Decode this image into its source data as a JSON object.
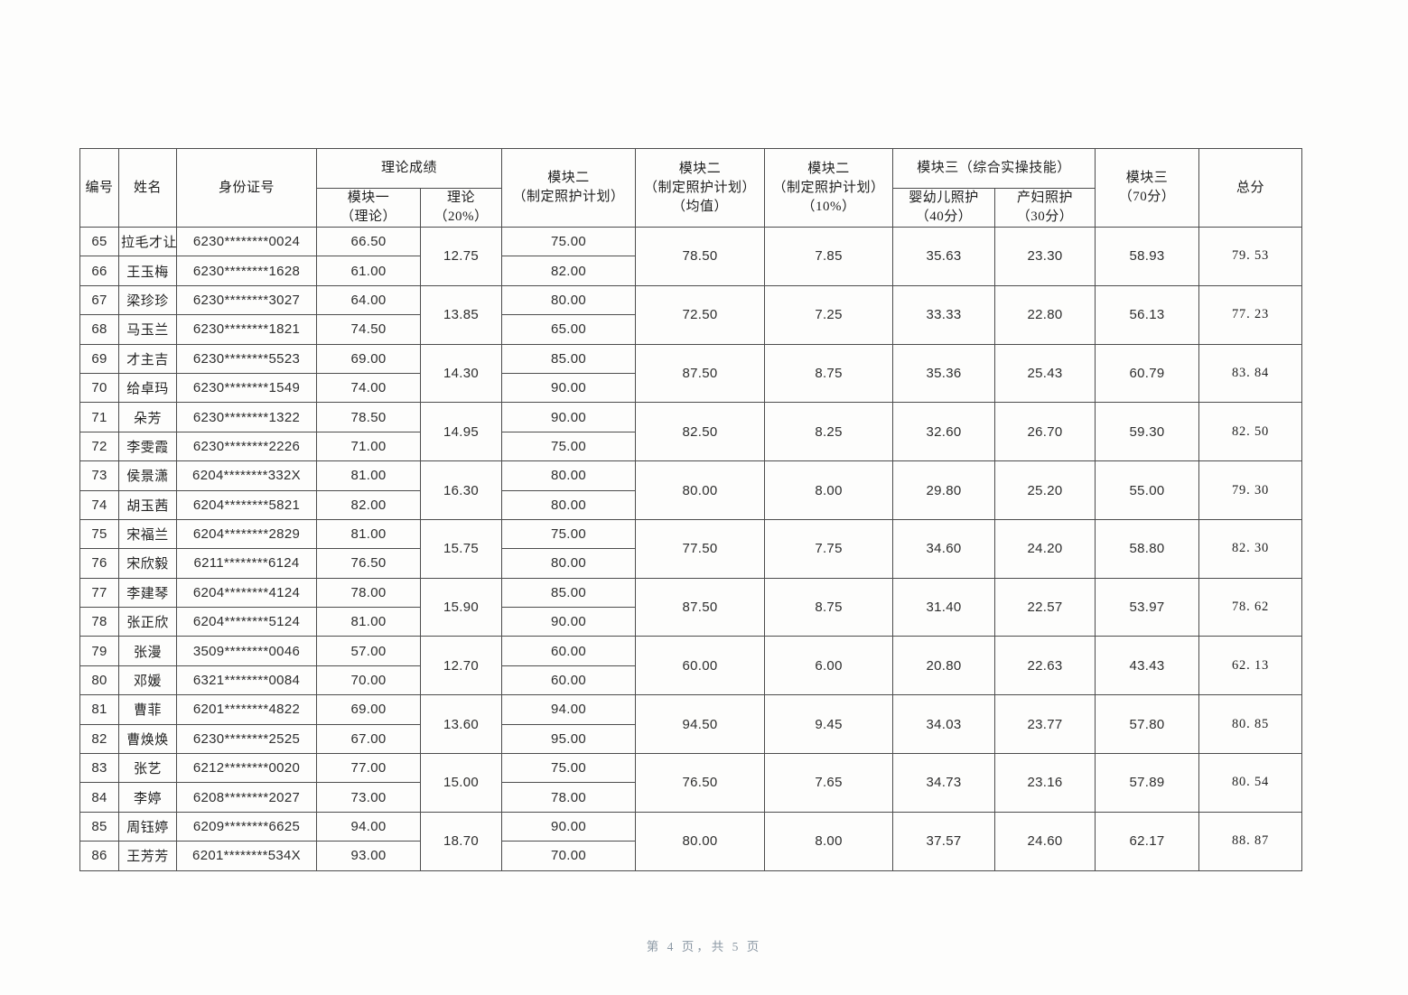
{
  "page": {
    "footer": "第 4 页，共 5 页"
  },
  "table": {
    "headers": {
      "no": "编号",
      "name": "姓名",
      "id_number": "身份证号",
      "theory_group": "理论成绩",
      "module1_theory": "模块一\n（理论）",
      "theory_20": "理论\n（20%）",
      "module2": "模块二\n（制定照护计划）",
      "module2_avg": "模块二\n（制定照护计划）\n（均值）",
      "module2_pct": "模块二\n（制定照护计划）\n（10%）",
      "module3_group": "模块三（综合实操技能）",
      "infant_care": "婴幼儿照护\n（40分）",
      "maternity_care": "产妇照护\n（30分）",
      "module3_70": "模块三\n（70分）",
      "total": "总分"
    },
    "rows": [
      {
        "no": "65",
        "name": "拉毛才让",
        "id": "6230********0024",
        "m1": "66.50",
        "m2": "75.00"
      },
      {
        "no": "66",
        "name": "王玉梅",
        "id": "6230********1628",
        "m1": "61.00",
        "m2": "82.00"
      },
      {
        "no": "67",
        "name": "梁珍珍",
        "id": "6230********3027",
        "m1": "64.00",
        "m2": "80.00"
      },
      {
        "no": "68",
        "name": "马玉兰",
        "id": "6230********1821",
        "m1": "74.50",
        "m2": "65.00"
      },
      {
        "no": "69",
        "name": "才主吉",
        "id": "6230********5523",
        "m1": "69.00",
        "m2": "85.00"
      },
      {
        "no": "70",
        "name": "给卓玛",
        "id": "6230********1549",
        "m1": "74.00",
        "m2": "90.00"
      },
      {
        "no": "71",
        "name": "朵芳",
        "id": "6230********1322",
        "m1": "78.50",
        "m2": "90.00"
      },
      {
        "no": "72",
        "name": "李雯霞",
        "id": "6230********2226",
        "m1": "71.00",
        "m2": "75.00"
      },
      {
        "no": "73",
        "name": "侯景潇",
        "id": "6204********332X",
        "m1": "81.00",
        "m2": "80.00"
      },
      {
        "no": "74",
        "name": "胡玉茜",
        "id": "6204********5821",
        "m1": "82.00",
        "m2": "80.00"
      },
      {
        "no": "75",
        "name": "宋福兰",
        "id": "6204********2829",
        "m1": "81.00",
        "m2": "75.00"
      },
      {
        "no": "76",
        "name": "宋欣毅",
        "id": "6211********6124",
        "m1": "76.50",
        "m2": "80.00"
      },
      {
        "no": "77",
        "name": "李建琴",
        "id": "6204********4124",
        "m1": "78.00",
        "m2": "85.00"
      },
      {
        "no": "78",
        "name": "张正欣",
        "id": "6204********5124",
        "m1": "81.00",
        "m2": "90.00"
      },
      {
        "no": "79",
        "name": "张漫",
        "id": "3509********0046",
        "m1": "57.00",
        "m2": "60.00"
      },
      {
        "no": "80",
        "name": "邓媛",
        "id": "6321********0084",
        "m1": "70.00",
        "m2": "60.00"
      },
      {
        "no": "81",
        "name": "曹菲",
        "id": "6201********4822",
        "m1": "69.00",
        "m2": "94.00"
      },
      {
        "no": "82",
        "name": "曹焕焕",
        "id": "6230********2525",
        "m1": "67.00",
        "m2": "95.00"
      },
      {
        "no": "83",
        "name": "张艺",
        "id": "6212********0020",
        "m1": "77.00",
        "m2": "75.00"
      },
      {
        "no": "84",
        "name": "李婷",
        "id": "6208********2027",
        "m1": "73.00",
        "m2": "78.00"
      },
      {
        "no": "85",
        "name": "周钰婷",
        "id": "6209********6625",
        "m1": "94.00",
        "m2": "90.00"
      },
      {
        "no": "86",
        "name": "王芳芳",
        "id": "6201********534X",
        "m1": "93.00",
        "m2": "70.00"
      }
    ],
    "groups": [
      {
        "theory20": "12.75",
        "avg": "78.50",
        "pct": "7.85",
        "infant": "35.63",
        "maternity": "23.30",
        "m3": "58.93",
        "total": "79. 53"
      },
      {
        "theory20": "13.85",
        "avg": "72.50",
        "pct": "7.25",
        "infant": "33.33",
        "maternity": "22.80",
        "m3": "56.13",
        "total": "77. 23"
      },
      {
        "theory20": "14.30",
        "avg": "87.50",
        "pct": "8.75",
        "infant": "35.36",
        "maternity": "25.43",
        "m3": "60.79",
        "total": "83. 84"
      },
      {
        "theory20": "14.95",
        "avg": "82.50",
        "pct": "8.25",
        "infant": "32.60",
        "maternity": "26.70",
        "m3": "59.30",
        "total": "82. 50"
      },
      {
        "theory20": "16.30",
        "avg": "80.00",
        "pct": "8.00",
        "infant": "29.80",
        "maternity": "25.20",
        "m3": "55.00",
        "total": "79. 30"
      },
      {
        "theory20": "15.75",
        "avg": "77.50",
        "pct": "7.75",
        "infant": "34.60",
        "maternity": "24.20",
        "m3": "58.80",
        "total": "82. 30"
      },
      {
        "theory20": "15.90",
        "avg": "87.50",
        "pct": "8.75",
        "infant": "31.40",
        "maternity": "22.57",
        "m3": "53.97",
        "total": "78. 62"
      },
      {
        "theory20": "12.70",
        "avg": "60.00",
        "pct": "6.00",
        "infant": "20.80",
        "maternity": "22.63",
        "m3": "43.43",
        "total": "62. 13"
      },
      {
        "theory20": "13.60",
        "avg": "94.50",
        "pct": "9.45",
        "infant": "34.03",
        "maternity": "23.77",
        "m3": "57.80",
        "total": "80. 85"
      },
      {
        "theory20": "15.00",
        "avg": "76.50",
        "pct": "7.65",
        "infant": "34.73",
        "maternity": "23.16",
        "m3": "57.89",
        "total": "80. 54"
      },
      {
        "theory20": "18.70",
        "avg": "80.00",
        "pct": "8.00",
        "infant": "37.57",
        "maternity": "24.60",
        "m3": "62.17",
        "total": "88. 87"
      }
    ]
  }
}
